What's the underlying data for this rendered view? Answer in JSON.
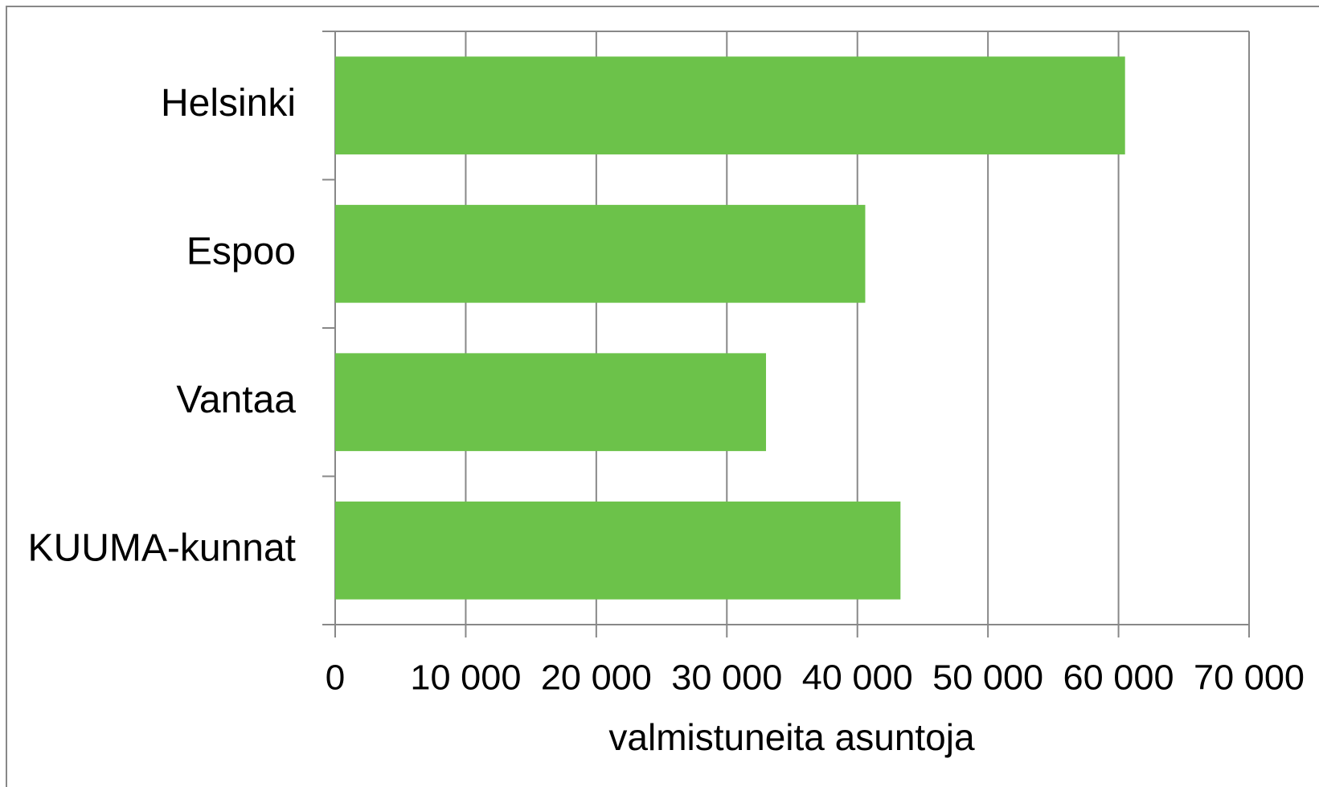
{
  "chart_data": {
    "type": "bar",
    "orientation": "horizontal",
    "categories": [
      "Helsinki",
      "Espoo",
      "Vantaa",
      "KUUMA-kunnat"
    ],
    "values": [
      60500,
      40600,
      33000,
      43300
    ],
    "color": "#6cc24a",
    "xlabel": "valmistuneita asuntoja",
    "xlim": [
      0,
      70000
    ],
    "xticks": [
      0,
      {
        "value": 10000,
        "label": "10 000"
      },
      {
        "value": 20000,
        "label": "20 000"
      },
      {
        "value": 30000,
        "label": "30 000"
      },
      {
        "value": 40000,
        "label": "40 000"
      },
      {
        "value": 50000,
        "label": "50 000"
      },
      {
        "value": 60000,
        "label": "60 000"
      },
      {
        "value": 70000,
        "label": "70 000"
      }
    ],
    "grid": true
  }
}
